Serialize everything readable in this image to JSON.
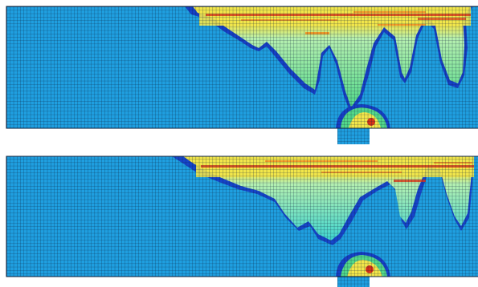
{
  "figure": {
    "description_free": true,
    "panels": [
      {
        "id": "top",
        "kind": "damage-contour-mesh"
      },
      {
        "id": "bottom",
        "kind": "damage-contour-mesh"
      }
    ],
    "colors": {
      "background_blue": "#1f9fe0",
      "deep_blue": "#1640c8",
      "cyan": "#3fd6d0",
      "green": "#52d88a",
      "light_green": "#b6f0b0",
      "yellow": "#f2e64a",
      "orange": "#f29a2a",
      "red": "#d83218",
      "mesh_line": "#0b1e3a"
    }
  }
}
